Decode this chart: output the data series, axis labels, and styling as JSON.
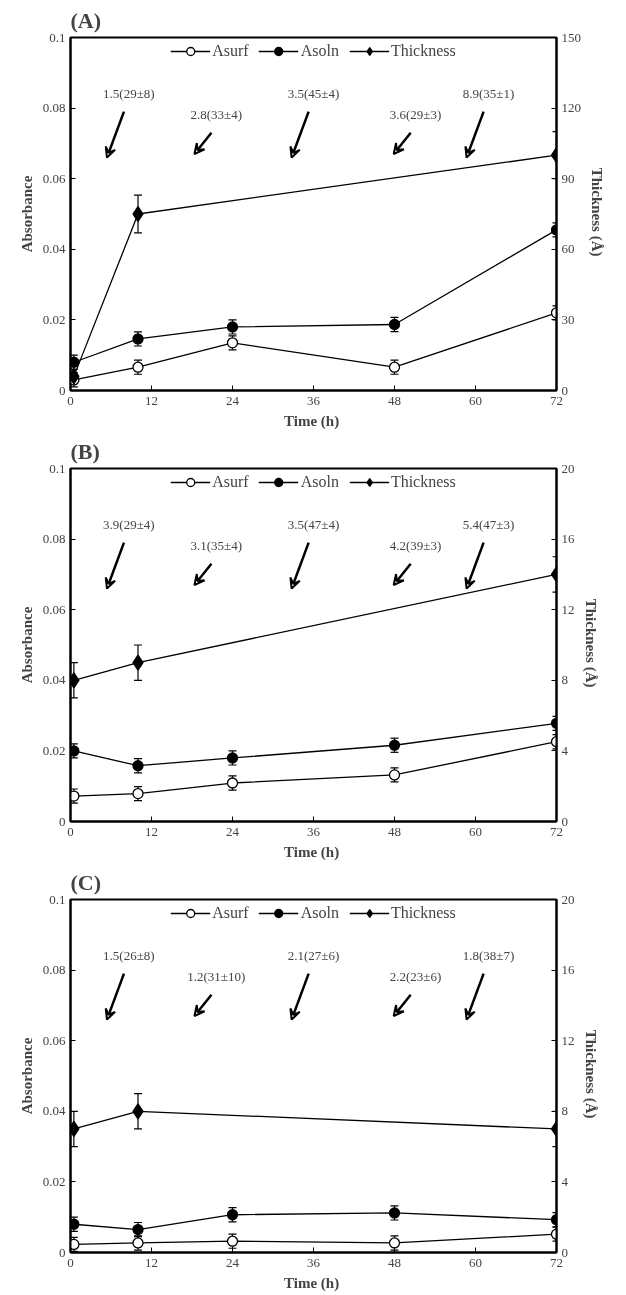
{
  "chart_data": [
    {
      "type": "line",
      "title": "(A)",
      "xlabel": "Time  (h)",
      "ylabel": "Absorbance",
      "y2label": "Thickness  (Å)",
      "xlim": [
        0,
        72
      ],
      "xticks": [
        0,
        12,
        24,
        36,
        48,
        60,
        72
      ],
      "ylim": [
        0,
        0.1
      ],
      "yticks": [
        0.0,
        0.02,
        0.04,
        0.06,
        0.08,
        0.1
      ],
      "y2lim": [
        0,
        150
      ],
      "y2ticks": [
        0,
        30,
        60,
        90,
        120,
        150
      ],
      "legend": "top",
      "grid": false,
      "series": [
        {
          "name": "Asurf",
          "color": "#000000",
          "marker": "circle",
          "x": [
            0.5,
            10,
            24,
            48,
            72
          ],
          "values": [
            0.003,
            0.0066,
            0.0135,
            0.0066,
            0.022
          ],
          "errors": [
            0.002,
            0.002,
            0.002,
            0.002,
            0.002
          ]
        },
        {
          "name": "Asoln",
          "color": "#000000",
          "marker": "circle",
          "x": [
            0.5,
            10,
            24,
            48,
            72
          ],
          "values": [
            0.008,
            0.0146,
            0.018,
            0.0187,
            0.0455
          ],
          "errors": [
            0.002,
            0.002,
            0.002,
            0.002,
            0.002
          ]
        },
        {
          "name": "Thickness",
          "color": "#000000",
          "marker": "diamond",
          "axis": "y2",
          "x": [
            0.5,
            10,
            72
          ],
          "values": [
            6,
            75,
            100
          ],
          "errors": [
            3,
            8,
            10
          ]
        }
      ],
      "annotations": [
        "1.5(29±8)",
        "2.8(33±4)",
        "3.5(45±4)",
        "3.6(29±3)",
        "8.9(35±1)"
      ]
    },
    {
      "type": "line",
      "title": "(B)",
      "xlabel": "Time  (h)",
      "ylabel": "Absorbance",
      "y2label": "Thickness  (Å)",
      "xlim": [
        0,
        72
      ],
      "xticks": [
        0,
        12,
        24,
        36,
        48,
        60,
        72
      ],
      "ylim": [
        0,
        0.1
      ],
      "yticks": [
        0.0,
        0.02,
        0.04,
        0.06,
        0.08,
        0.1
      ],
      "y2lim": [
        0,
        20
      ],
      "y2ticks": [
        0,
        4,
        8,
        12,
        16,
        20
      ],
      "legend": "top",
      "grid": false,
      "series": [
        {
          "name": "Asurf",
          "color": "#000000",
          "marker": "circle",
          "x": [
            0.5,
            10,
            24,
            48,
            72
          ],
          "values": [
            0.0072,
            0.0079,
            0.0109,
            0.0132,
            0.0226
          ],
          "errors": [
            0.002,
            0.002,
            0.002,
            0.002,
            0.002
          ]
        },
        {
          "name": "Asoln",
          "color": "#000000",
          "marker": "circle",
          "x": [
            0.5,
            10,
            24,
            48,
            72
          ],
          "values": [
            0.02,
            0.0158,
            0.018,
            0.0216,
            0.0278
          ],
          "errors": [
            0.002,
            0.002,
            0.002,
            0.002,
            0.002
          ]
        },
        {
          "name": "Thickness",
          "color": "#000000",
          "marker": "diamond",
          "axis": "y2",
          "x": [
            0.5,
            10,
            72
          ],
          "values": [
            8,
            9,
            14
          ],
          "errors": [
            1,
            1,
            1
          ]
        }
      ],
      "annotations": [
        "3.9(29±4)",
        "3.1(35±4)",
        "3.5(47±4)",
        "4.2(39±3)",
        "5.4(47±3)"
      ]
    },
    {
      "type": "line",
      "title": "(C)",
      "xlabel": "Time  (h)",
      "ylabel": "Absorbance",
      "y2label": "Thickness  (Å)",
      "xlim": [
        0,
        72
      ],
      "xticks": [
        0,
        12,
        24,
        36,
        48,
        60,
        72
      ],
      "ylim": [
        0,
        0.1
      ],
      "yticks": [
        0.0,
        0.02,
        0.04,
        0.06,
        0.08,
        0.1
      ],
      "y2lim": [
        0,
        20
      ],
      "y2ticks": [
        0,
        4,
        8,
        12,
        16,
        20
      ],
      "legend": "top",
      "grid": false,
      "series": [
        {
          "name": "Asurf",
          "color": "#000000",
          "marker": "circle",
          "x": [
            0.5,
            10,
            24,
            48,
            72
          ],
          "values": [
            0.0023,
            0.0027,
            0.0032,
            0.0027,
            0.0052
          ],
          "errors": [
            0.002,
            0.002,
            0.002,
            0.002,
            0.002
          ]
        },
        {
          "name": "Asoln",
          "color": "#000000",
          "marker": "circle",
          "x": [
            0.5,
            10,
            24,
            48,
            72
          ],
          "values": [
            0.008,
            0.0065,
            0.0107,
            0.0112,
            0.0093
          ],
          "errors": [
            0.002,
            0.002,
            0.002,
            0.002,
            0.002
          ]
        },
        {
          "name": "Thickness",
          "color": "#000000",
          "marker": "diamond",
          "axis": "y2",
          "x": [
            0.5,
            10,
            72
          ],
          "values": [
            7,
            8,
            7
          ],
          "errors": [
            1,
            1,
            1
          ]
        }
      ],
      "annotations": [
        "1.5(26±8)",
        "1.2(31±10)",
        "2.1(27±6)",
        "2.2(23±6)",
        "1.8(38±7)"
      ]
    }
  ]
}
